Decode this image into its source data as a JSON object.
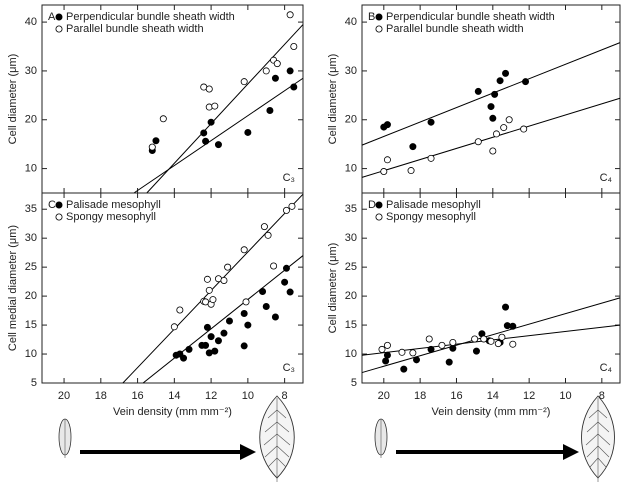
{
  "chart_data": [
    {
      "type": "scatter",
      "panel_label": "A",
      "photosynthesis": "C₃",
      "ylabel": "Cell diameter (μm)",
      "show_xtick_labels": false,
      "xlim": [
        21.2,
        7
      ],
      "ylim": [
        5,
        43.5
      ],
      "xticks": [
        20,
        18,
        16,
        14,
        12,
        10,
        8
      ],
      "yticks": [
        10,
        20,
        30,
        40
      ],
      "series": [
        {
          "name": "Perpendicular bundle sheath width",
          "color": "#000000",
          "x": [
            15.2,
            15.0,
            12.4,
            12.3,
            12.0,
            11.6,
            10.0,
            8.8,
            8.5,
            7.7,
            7.5
          ],
          "values": [
            13.7,
            15.7,
            17.3,
            15.6,
            19.5,
            14.9,
            17.4,
            21.9,
            28.5,
            30.0,
            26.7
          ]
        },
        {
          "name": "Parallel bundle sheath width",
          "color": "#ffffff",
          "x": [
            15.2,
            14.6,
            12.4,
            12.1,
            12.1,
            11.8,
            10.2,
            9.0,
            8.6,
            8.4,
            7.7,
            7.5
          ],
          "values": [
            14.4,
            20.2,
            26.7,
            26.3,
            22.6,
            22.8,
            27.8,
            30.0,
            32.2,
            31.5,
            41.5,
            35.0
          ]
        }
      ],
      "trend_lines": [
        {
          "x": [
            16.2,
            7.0
          ],
          "values": [
            5,
            28.5
          ]
        },
        {
          "x": [
            15.5,
            7.0
          ],
          "values": [
            5,
            39.5
          ]
        }
      ]
    },
    {
      "type": "scatter",
      "panel_label": "B",
      "photosynthesis": "C₄",
      "ylabel": "Cell diameter (μm)",
      "show_xtick_labels": false,
      "xlim": [
        21.2,
        7
      ],
      "ylim": [
        5,
        43.5
      ],
      "xticks": [
        20,
        18,
        16,
        14,
        12,
        10,
        8
      ],
      "yticks": [
        10,
        20,
        30,
        40
      ],
      "series": [
        {
          "name": "Perpendicular bundle sheath width",
          "color": "#000000",
          "x": [
            20.0,
            19.8,
            18.4,
            17.4,
            14.8,
            14.1,
            14.0,
            13.9,
            13.6,
            13.3,
            12.2
          ],
          "values": [
            18.5,
            19.0,
            14.5,
            19.5,
            25.8,
            22.7,
            20.3,
            25.2,
            28.0,
            29.5,
            27.8
          ]
        },
        {
          "name": "Parallel bundle sheath width",
          "color": "#ffffff",
          "x": [
            20.0,
            19.8,
            18.5,
            17.4,
            14.8,
            14.0,
            13.8,
            13.4,
            13.1,
            12.3
          ],
          "values": [
            9.4,
            11.8,
            9.6,
            12.1,
            15.5,
            13.6,
            17.1,
            18.4,
            20.0,
            18.1
          ]
        }
      ],
      "trend_lines": [
        {
          "x": [
            21.2,
            7
          ],
          "values": [
            14.8,
            35.8
          ]
        },
        {
          "x": [
            21.2,
            7
          ],
          "values": [
            8.2,
            24.4
          ]
        }
      ]
    },
    {
      "type": "scatter",
      "panel_label": "C",
      "photosynthesis": "C₃",
      "ylabel": "Cell medial diameter (μm)",
      "xlabel": "Vein density (mm mm⁻²)",
      "show_xtick_labels": true,
      "xlim": [
        21.2,
        7
      ],
      "ylim": [
        5,
        37.8
      ],
      "xticks": [
        20,
        18,
        16,
        14,
        12,
        10,
        8
      ],
      "yticks": [
        5,
        10,
        15,
        20,
        25,
        30,
        35
      ],
      "series": [
        {
          "name": "Palisade mesophyll",
          "color": "#000000",
          "x": [
            13.9,
            13.7,
            13.5,
            13.2,
            12.5,
            12.3,
            12.2,
            12.1,
            12.0,
            11.8,
            11.6,
            11.3,
            11.0,
            10.2,
            10.2,
            10.0,
            9.2,
            9.0,
            8.5,
            8.0,
            7.9,
            7.7
          ],
          "values": [
            9.8,
            10.0,
            9.3,
            10.8,
            11.5,
            11.5,
            14.6,
            10.2,
            13.0,
            10.5,
            12.3,
            13.6,
            15.7,
            11.4,
            17.0,
            15.0,
            20.8,
            18.2,
            16.4,
            22.4,
            24.8,
            20.7
          ]
        },
        {
          "name": "Spongy mesophyll",
          "color": "#ffffff",
          "x": [
            14.0,
            13.7,
            12.4,
            12.3,
            12.2,
            12.1,
            12.0,
            11.9,
            11.6,
            11.3,
            11.1,
            10.2,
            10.1,
            9.1,
            8.9,
            8.6,
            7.9,
            7.6
          ],
          "values": [
            14.7,
            17.6,
            19.1,
            19.0,
            22.9,
            21.0,
            18.6,
            19.4,
            23.0,
            22.7,
            25.0,
            28.0,
            19.0,
            32.0,
            30.5,
            25.2,
            34.8,
            35.5
          ]
        }
      ],
      "trend_lines": [
        {
          "x": [
            16.8,
            7
          ],
          "values": [
            5,
            37.6
          ]
        },
        {
          "x": [
            15.7,
            7
          ],
          "values": [
            5,
            27.0
          ]
        }
      ]
    },
    {
      "type": "scatter",
      "panel_label": "D",
      "photosynthesis": "C₄",
      "ylabel": "Cell diameter (μm)",
      "xlabel": "Vein density (mm mm⁻²)",
      "show_xtick_labels": true,
      "xlim": [
        21.2,
        7
      ],
      "ylim": [
        5,
        37.8
      ],
      "xticks": [
        20,
        18,
        16,
        14,
        12,
        10,
        8
      ],
      "yticks": [
        5,
        10,
        15,
        20,
        25,
        30,
        35
      ],
      "series": [
        {
          "name": "Palisade mesophyll",
          "color": "#000000",
          "x": [
            19.9,
            19.8,
            18.9,
            18.2,
            17.4,
            16.4,
            16.2,
            14.9,
            14.6,
            14.2,
            13.6,
            13.3,
            13.2,
            12.9
          ],
          "values": [
            8.8,
            9.8,
            7.4,
            9.0,
            10.8,
            8.6,
            11.0,
            10.5,
            13.5,
            12.3,
            12.0,
            18.1,
            14.9,
            14.8
          ]
        },
        {
          "name": "Spongy mesophyll",
          "color": "#ffffff",
          "x": [
            20.1,
            19.8,
            19.0,
            18.4,
            17.5,
            16.8,
            16.2,
            15.0,
            14.5,
            14.1,
            13.7,
            13.5,
            12.9
          ],
          "values": [
            10.8,
            11.5,
            10.3,
            10.2,
            12.6,
            11.5,
            12.0,
            12.6,
            12.6,
            12.2,
            11.8,
            12.9,
            11.7
          ]
        }
      ],
      "trend_lines": [
        {
          "x": [
            21.2,
            7
          ],
          "values": [
            6.8,
            19.7
          ]
        },
        {
          "x": [
            21.2,
            7
          ],
          "values": [
            9.8,
            15.0
          ]
        }
      ]
    }
  ]
}
